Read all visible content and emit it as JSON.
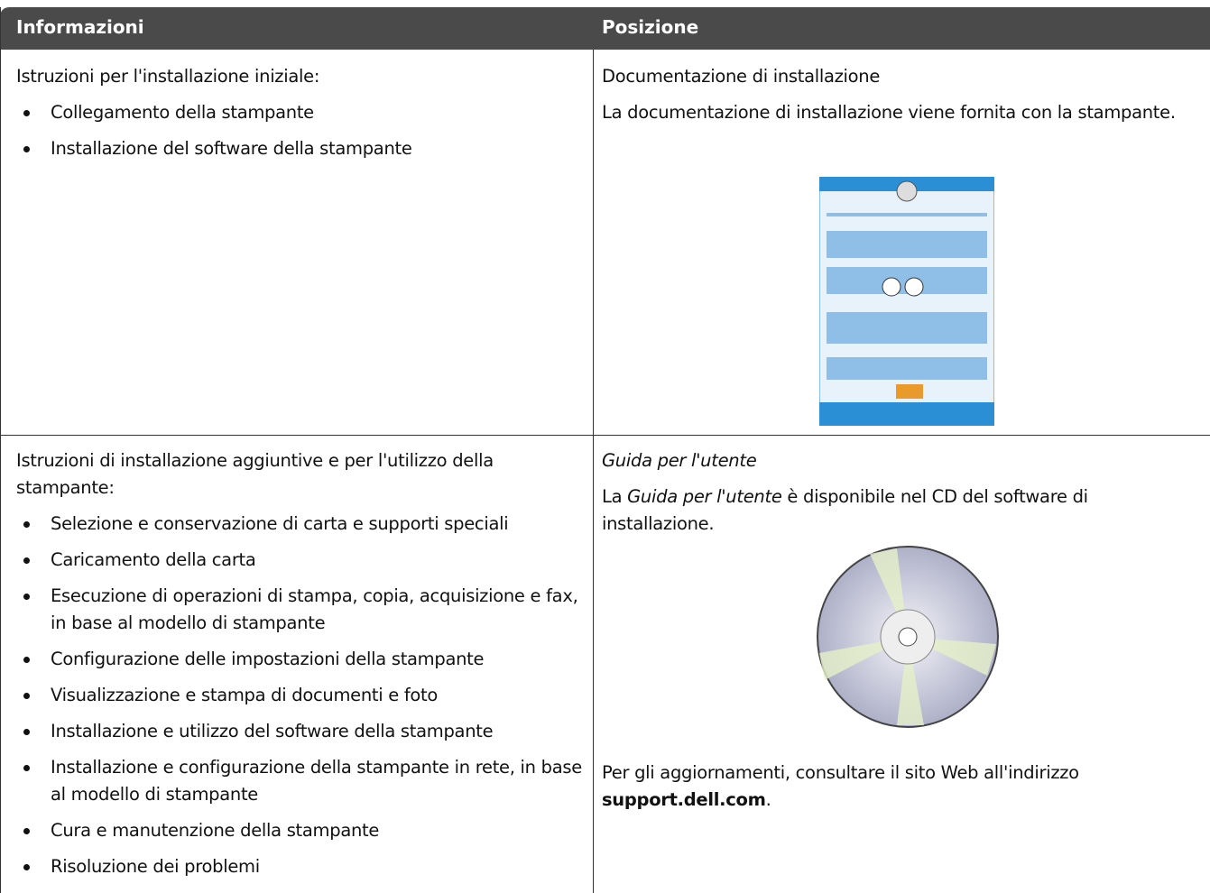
{
  "header": {
    "columns": [
      "Informazioni",
      "Posizione"
    ]
  },
  "table": {
    "rows": [
      {
        "info_intro": "Istruzioni per l'installazione iniziale:",
        "info_items": [
          "Collegamento della stampante",
          "Installazione del software della stampante"
        ],
        "position_title": "Documentazione di installazione",
        "position_text": "La documentazione di installazione viene fornita con la stampante."
      },
      {
        "info_intro": "Istruzioni di installazione aggiuntive e per l'utilizzo della stampante:",
        "info_items": [
          "Selezione e conservazione di carta e supporti speciali",
          "Caricamento della carta",
          "Esecuzione di operazioni di stampa, copia, acquisizione e fax, in base al modello di stampante",
          "Configurazione delle impostazioni della stampante",
          "Visualizzazione e stampa di documenti e foto",
          "Installazione e utilizzo del software della stampante",
          "Installazione e configurazione della stampante in rete, in base al modello di stampante",
          "Cura e manutenzione della stampante",
          "Risoluzione dei problemi"
        ],
        "position_title": "Guida per l'utente",
        "position_text_parts": [
          "La ",
          "Guida per l'utente",
          " è disponibile nel CD del software di installazione."
        ],
        "position_note_parts": [
          "Per gli aggiornamenti, consultare il sito Web all'indirizzo ",
          "support.dell.com",
          "."
        ]
      }
    ]
  }
}
